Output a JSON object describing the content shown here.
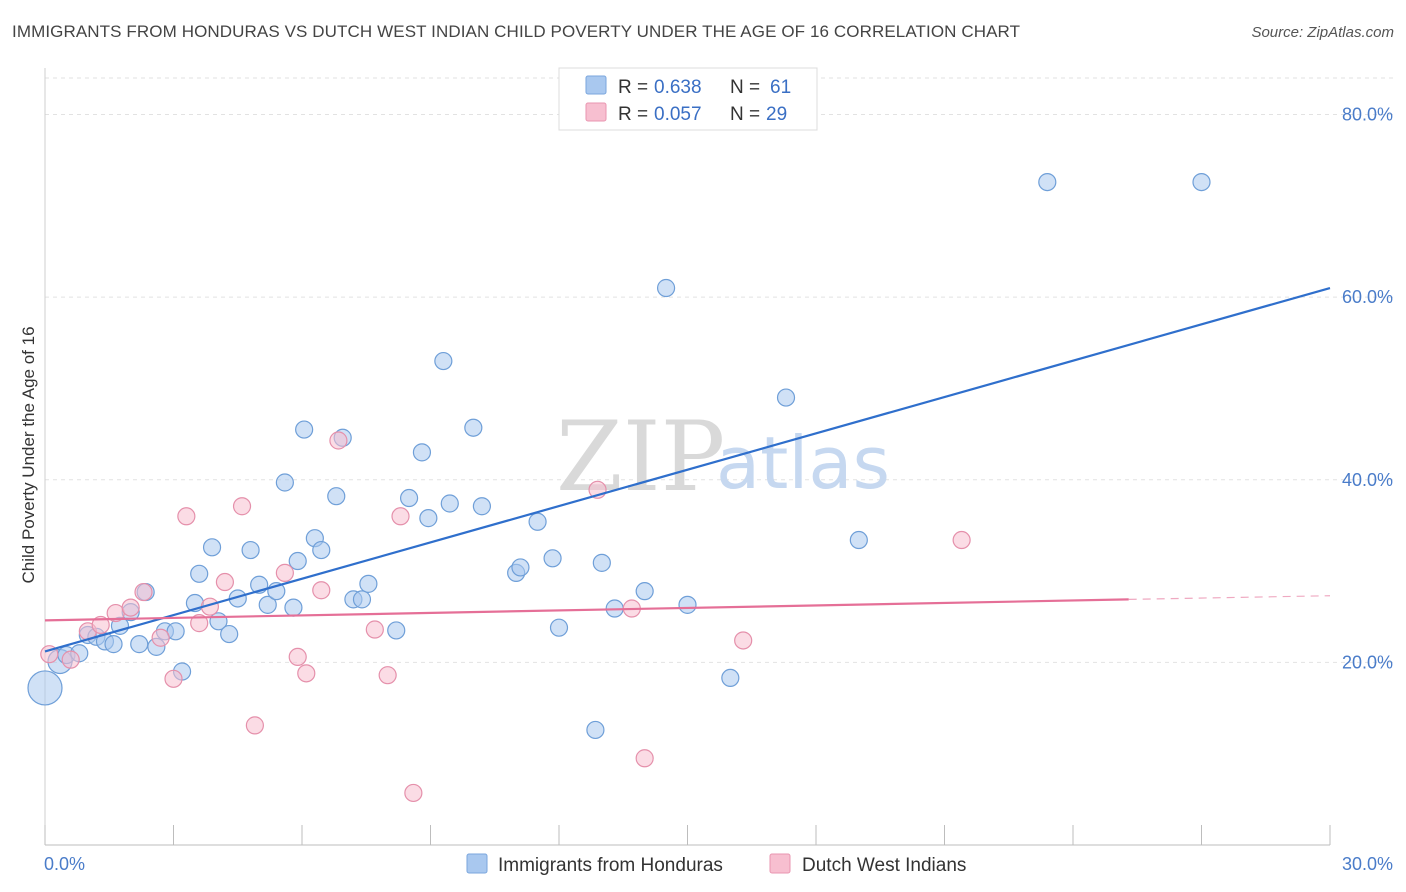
{
  "title": "IMMIGRANTS FROM HONDURAS VS DUTCH WEST INDIAN CHILD POVERTY UNDER THE AGE OF 16 CORRELATION CHART",
  "source": "Source: ZipAtlas.com",
  "watermark": {
    "part1": "ZIP",
    "part2": "atlas"
  },
  "legend": {
    "r_label": "R = ",
    "n_label": "N = ",
    "entries": [
      {
        "r": "0.638",
        "n": "61",
        "color": "#a9c8ef",
        "stroke": "#7aa6dd"
      },
      {
        "r": "0.057",
        "n": "29",
        "color": "#f7bfd0",
        "stroke": "#e996b0"
      }
    ]
  },
  "chart_data": {
    "type": "scatter",
    "ylabel": "Child Poverty Under the Age of 16",
    "xlim": [
      0,
      30
    ],
    "ylim": [
      0,
      84
    ],
    "y_ticks": [
      20,
      40,
      60,
      80
    ],
    "y_tick_labels": [
      "20.0%",
      "40.0%",
      "60.0%",
      "80.0%"
    ],
    "x_tick_labels": [
      "0.0%",
      "30.0%"
    ],
    "grid": true,
    "series": [
      {
        "name": "Immigrants from Honduras",
        "color": "#a9c8ef",
        "stroke": "#6f9fd8",
        "trend": {
          "x": [
            0,
            30
          ],
          "y": [
            21.2,
            61.0
          ],
          "color": "#2f6fcc"
        },
        "points": [
          [
            0.0,
            17.2,
            3
          ],
          [
            0.35,
            20.1,
            2
          ],
          [
            0.5,
            20.8,
            1
          ],
          [
            0.8,
            21.0,
            1
          ],
          [
            1.0,
            23.0,
            1
          ],
          [
            1.2,
            22.8,
            1
          ],
          [
            1.4,
            22.3,
            1
          ],
          [
            1.6,
            22.0,
            1
          ],
          [
            1.75,
            24.0,
            1
          ],
          [
            2.0,
            25.5,
            1
          ],
          [
            2.2,
            22.0,
            1
          ],
          [
            2.35,
            27.7,
            1
          ],
          [
            2.6,
            21.7,
            1
          ],
          [
            2.8,
            23.4,
            1
          ],
          [
            3.05,
            23.4,
            1
          ],
          [
            3.2,
            19.0,
            1
          ],
          [
            3.5,
            26.5,
            1
          ],
          [
            3.6,
            29.7,
            1
          ],
          [
            3.9,
            32.6,
            1
          ],
          [
            4.05,
            24.5,
            1
          ],
          [
            4.3,
            23.1,
            1
          ],
          [
            4.5,
            27.0,
            1
          ],
          [
            4.8,
            32.3,
            1
          ],
          [
            5.0,
            28.5,
            1
          ],
          [
            5.2,
            26.3,
            1
          ],
          [
            5.4,
            27.8,
            1
          ],
          [
            5.6,
            39.7,
            1
          ],
          [
            5.8,
            26.0,
            1
          ],
          [
            5.9,
            31.1,
            1
          ],
          [
            6.05,
            45.5,
            1
          ],
          [
            6.3,
            33.6,
            1
          ],
          [
            6.45,
            32.3,
            1
          ],
          [
            6.8,
            38.2,
            1
          ],
          [
            6.95,
            44.6,
            1
          ],
          [
            7.2,
            26.9,
            1
          ],
          [
            7.4,
            26.9,
            1
          ],
          [
            7.55,
            28.6,
            1
          ],
          [
            8.2,
            23.5,
            1
          ],
          [
            8.5,
            38.0,
            1
          ],
          [
            8.8,
            43.0,
            1
          ],
          [
            8.95,
            35.8,
            1
          ],
          [
            9.3,
            53.0,
            1
          ],
          [
            9.45,
            37.4,
            1
          ],
          [
            10.0,
            45.7,
            1
          ],
          [
            10.2,
            37.1,
            1
          ],
          [
            11.0,
            29.8,
            1
          ],
          [
            11.1,
            30.4,
            1
          ],
          [
            11.5,
            35.4,
            1
          ],
          [
            11.85,
            31.4,
            1
          ],
          [
            12.0,
            23.8,
            1
          ],
          [
            12.85,
            12.6,
            1
          ],
          [
            13.0,
            30.9,
            1
          ],
          [
            13.3,
            25.9,
            1
          ],
          [
            14.0,
            27.8,
            1
          ],
          [
            14.5,
            61.0,
            1
          ],
          [
            15.0,
            26.3,
            1
          ],
          [
            16.0,
            18.3,
            1
          ],
          [
            17.3,
            49.0,
            1
          ],
          [
            19.0,
            33.4,
            1
          ],
          [
            23.4,
            72.6,
            1
          ],
          [
            27.0,
            72.6,
            1
          ]
        ]
      },
      {
        "name": "Dutch West Indians",
        "color": "#f7bfd0",
        "stroke": "#e590ab",
        "trend": {
          "x": [
            0,
            25.3
          ],
          "y": [
            24.6,
            26.9
          ],
          "color": "#e56f97",
          "dash_to": [
            30,
            27.3
          ]
        },
        "points": [
          [
            0.1,
            20.9,
            1
          ],
          [
            0.6,
            20.3,
            1
          ],
          [
            1.0,
            23.4,
            1
          ],
          [
            1.3,
            24.1,
            1
          ],
          [
            1.65,
            25.4,
            1
          ],
          [
            2.0,
            26.0,
            1
          ],
          [
            2.3,
            27.7,
            1
          ],
          [
            2.7,
            22.7,
            1
          ],
          [
            3.0,
            18.2,
            1
          ],
          [
            3.3,
            36.0,
            1
          ],
          [
            3.6,
            24.3,
            1
          ],
          [
            3.85,
            26.1,
            1
          ],
          [
            4.2,
            28.8,
            1
          ],
          [
            4.6,
            37.1,
            1
          ],
          [
            4.9,
            13.1,
            1
          ],
          [
            5.6,
            29.8,
            1
          ],
          [
            5.9,
            20.6,
            1
          ],
          [
            6.1,
            18.8,
            1
          ],
          [
            6.45,
            27.9,
            1
          ],
          [
            6.85,
            44.3,
            1
          ],
          [
            7.7,
            23.6,
            1
          ],
          [
            8.0,
            18.6,
            1
          ],
          [
            8.3,
            36.0,
            1
          ],
          [
            8.6,
            5.7,
            1
          ],
          [
            12.9,
            38.9,
            1
          ],
          [
            14.0,
            9.5,
            1
          ],
          [
            13.7,
            25.9,
            1
          ],
          [
            16.3,
            22.4,
            1
          ],
          [
            21.4,
            33.4,
            1
          ]
        ]
      }
    ]
  }
}
